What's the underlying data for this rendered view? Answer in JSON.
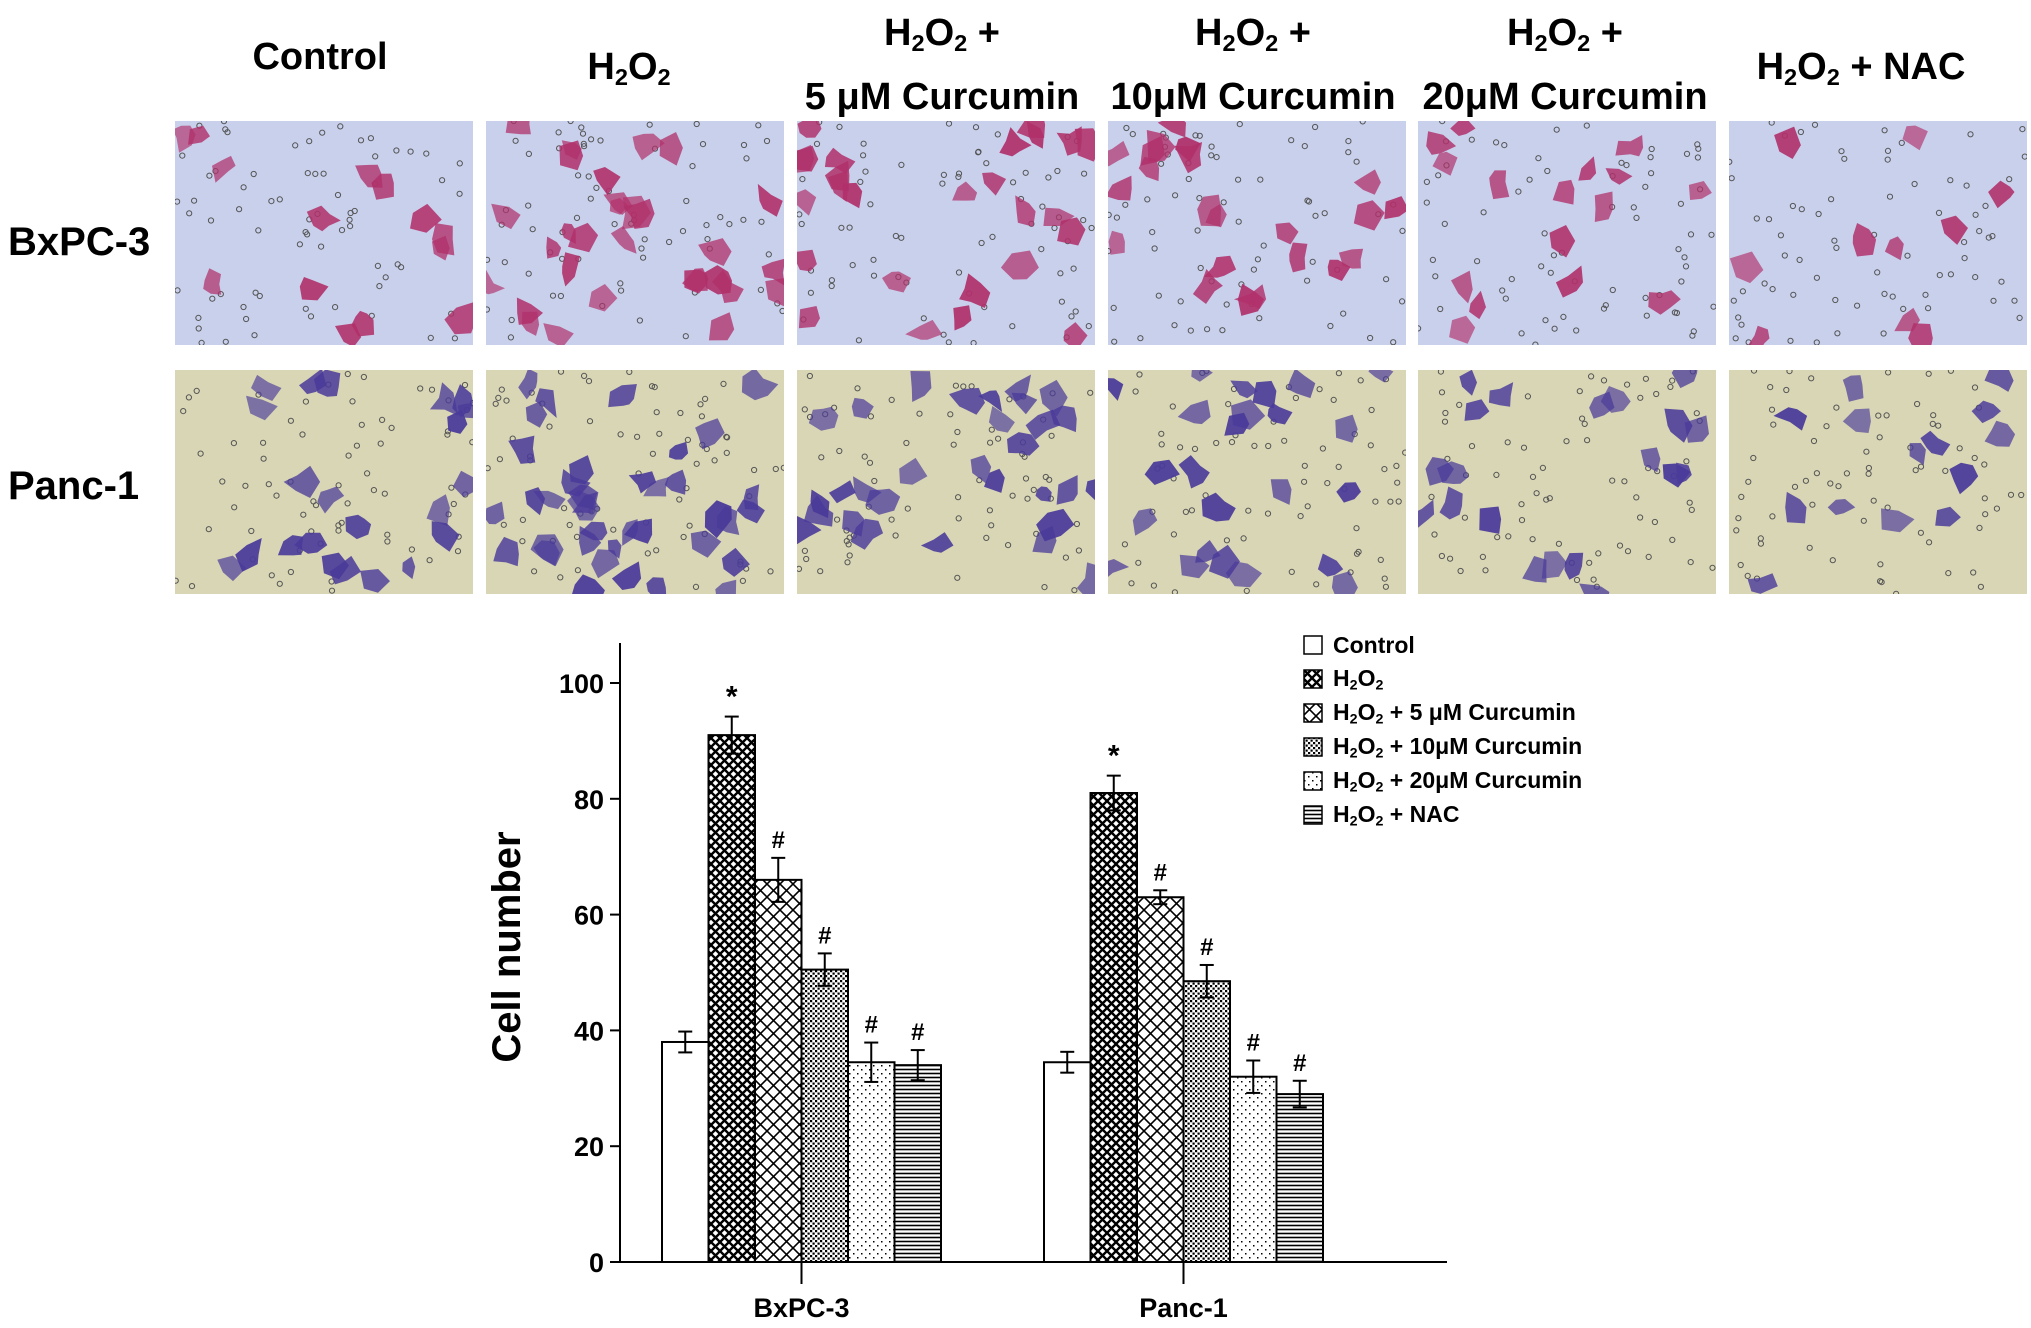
{
  "columns": [
    {
      "line1": "Control",
      "line2": ""
    },
    {
      "line1": "H2O2",
      "line2": ""
    },
    {
      "line1": "H2O2 +",
      "line2": "5 μM Curcumin"
    },
    {
      "line1": "H2O2 +",
      "line2": "10μM Curcumin"
    },
    {
      "line1": "H2O2 +",
      "line2": "20μM Curcumin"
    },
    {
      "line1": "H2O2 + NAC",
      "line2": ""
    }
  ],
  "rows": [
    {
      "label": "BxPC-3",
      "stain_color": "#b0306a",
      "bg_color": "#c9d0ec"
    },
    {
      "label": "Panc-1",
      "stain_color": "#4a3a9a",
      "bg_color": "#d9d6b5"
    }
  ],
  "chart_data": {
    "type": "bar",
    "ylabel": "Cell number",
    "xlabel": "",
    "ylim": [
      0,
      100
    ],
    "yticks": [
      0,
      20,
      40,
      60,
      80,
      100
    ],
    "categories": [
      "BxPC-3",
      "Panc-1"
    ],
    "series": [
      {
        "name": "Control",
        "pattern": "white",
        "values": [
          38,
          34.5
        ],
        "errors": [
          1.8,
          1.8
        ],
        "markers": [
          "",
          ""
        ]
      },
      {
        "name": "H2O2",
        "pattern": "dense-crosshatch",
        "values": [
          91,
          81
        ],
        "errors": [
          3.2,
          3
        ],
        "markers": [
          "*",
          "*"
        ]
      },
      {
        "name": "H2O2 + 5 μM Curcumin",
        "pattern": "crosshatch",
        "values": [
          66,
          63
        ],
        "errors": [
          3.8,
          1.2
        ],
        "markers": [
          "#",
          "#"
        ]
      },
      {
        "name": "H2O2 + 10μM Curcumin",
        "pattern": "dots",
        "values": [
          50.5,
          48.5
        ],
        "errors": [
          2.8,
          2.8
        ],
        "markers": [
          "#",
          "#"
        ]
      },
      {
        "name": "H2O2 + 20μM Curcumin",
        "pattern": "sparse-dots",
        "values": [
          34.5,
          32
        ],
        "errors": [
          3.4,
          2.8
        ],
        "markers": [
          "#",
          "#"
        ]
      },
      {
        "name": "H2O2 + NAC",
        "pattern": "horizontal-lines",
        "values": [
          34,
          29
        ],
        "errors": [
          2.6,
          2.3
        ],
        "markers": [
          "#",
          "#"
        ]
      }
    ],
    "legend_position": "top-right",
    "grid": false
  }
}
